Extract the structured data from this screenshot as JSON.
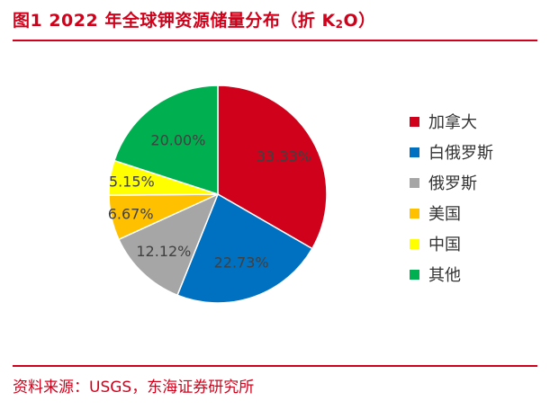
{
  "header": {
    "title_main": "图1  2022 年全球钾资源储量分布（折 K",
    "title_sub": "2",
    "title_end": "O）"
  },
  "footer": {
    "source": "资料来源：USGS，东海证券研究所"
  },
  "chart_data": {
    "type": "pie",
    "start_angle_deg": 0,
    "direction": "clockwise",
    "slices": [
      {
        "label": "加拿大",
        "value": 33.33,
        "data_label": "33.33%",
        "color": "#d0021b"
      },
      {
        "label": "白俄罗斯",
        "value": 22.73,
        "data_label": "22.73%",
        "color": "#0070c0"
      },
      {
        "label": "俄罗斯",
        "value": 12.12,
        "data_label": "12.12%",
        "color": "#a6a6a6"
      },
      {
        "label": "美国",
        "value": 6.67,
        "data_label": "6.67%",
        "color": "#ffc000"
      },
      {
        "label": "中国",
        "value": 5.15,
        "data_label": "5.15%",
        "color": "#ffff00"
      },
      {
        "label": "其他",
        "value": 20.0,
        "data_label": "20.00%",
        "color": "#00b050"
      }
    ],
    "legend_position": "right"
  }
}
